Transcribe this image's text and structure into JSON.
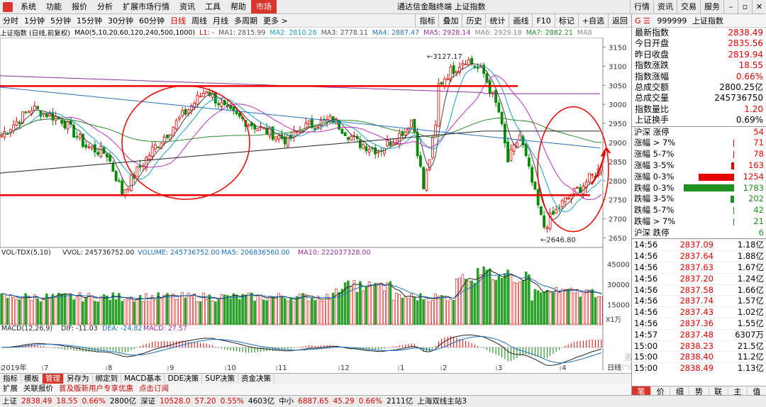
{
  "menubar": {
    "items": [
      "系统",
      "功能",
      "报价",
      "分析",
      "扩展市场行情",
      "资讯",
      "工具",
      "帮助"
    ],
    "active": "市场",
    "title": "通达信金融终端  上证指数",
    "right_buttons": [
      "行情",
      "资讯",
      "交易",
      "服务"
    ]
  },
  "periodbar": {
    "items": [
      "分时",
      "1分钟",
      "5分钟",
      "15分钟",
      "30分钟",
      "60分钟",
      "日线",
      "周线",
      "月线",
      "多周期",
      "更多 >"
    ],
    "active": "日线",
    "tools": [
      "指标",
      "叠加",
      "历史",
      "统计",
      "画线",
      "F10",
      "标记",
      "+自选",
      "返回"
    ]
  },
  "ma_legend": {
    "label": "上证指数 (日线,前复权)",
    "ma0": "MA0(5,10,20,60,120,240,500,1000)",
    "l1": "L1: -",
    "ma1": "MA1: 2815.99",
    "ma2": "MA2: 2810.26",
    "ma3": "MA3: 2778.11",
    "ma4": "MA4: 2887.47",
    "ma5": "MA5: 2928.14",
    "ma6": "MA6: 2929.18",
    "ma7": "MA7: 2882.21",
    "ma8": "MA8"
  },
  "volume_legend": {
    "label": "VOL-TDX(5,10)",
    "vvol": "VVOL: 245736752.00",
    "volume": "VOLUME: 245736752.00",
    "ma5": "MA5: 206836560.00",
    "ma10": "MA10: 222037328.00",
    "unit": "X1万"
  },
  "macd_legend": {
    "label": "MACD(12,26,9)",
    "dif": "DIF: -11.03",
    "dea": "DEA: -24.82",
    "macd": "MACD: 27.57"
  },
  "price_axis": [
    "3150",
    "3100",
    "3050",
    "3000",
    "2950",
    "2900",
    "2850",
    "2800",
    "2750",
    "2700",
    "2650"
  ],
  "volume_axis": [
    "45000",
    "30000",
    "15000"
  ],
  "annotations": {
    "high": "3127.17",
    "low": "2646.80"
  },
  "x_axis": {
    "labels": [
      "2019年",
      "7",
      "8",
      "9",
      "10",
      "11",
      "12",
      "1",
      "2",
      "3",
      "4"
    ],
    "period": "日线"
  },
  "right_panel": {
    "code": "999999",
    "name": "上证指数",
    "prefix": "G ☰",
    "quote": [
      {
        "label": "最新指数",
        "value": "2838.49"
      },
      {
        "label": "今日开盘",
        "value": "2835.56"
      },
      {
        "label": "昨日收盘",
        "value": "2819.94"
      },
      {
        "label": "指数涨跌",
        "value": "18.55"
      },
      {
        "label": "指数涨幅",
        "value": "0.66%"
      },
      {
        "label": "总成交额",
        "value": "2800.25亿"
      },
      {
        "label": "总成交量",
        "value": "245736750"
      },
      {
        "label": "指数量比",
        "value": "1.20"
      },
      {
        "label": "上证换手",
        "value": "0.69%"
      }
    ],
    "breadth": [
      {
        "label": "沪深 涨停",
        "value": "54",
        "frac": 0,
        "color": "#e60000"
      },
      {
        "label": "涨幅 > 7%",
        "value": "71",
        "frac": 0.02,
        "color": "#e60000"
      },
      {
        "label": "涨幅 5-7%",
        "value": "78",
        "frac": 0.02,
        "color": "#e60000"
      },
      {
        "label": "涨幅 3-5%",
        "value": "163",
        "frac": 0.05,
        "color": "#e60000"
      },
      {
        "label": "涨幅 0-3%",
        "value": "1254",
        "frac": 0.7,
        "color": "#e60000"
      },
      {
        "label": "跌幅 0-3%",
        "value": "1783",
        "frac": 1.0,
        "color": "#1f8f1f",
        "left": true
      },
      {
        "label": "跌幅 3-5%",
        "value": "202",
        "frac": 0.07,
        "color": "#1f8f1f"
      },
      {
        "label": "跌幅 5-7%",
        "value": "42",
        "frac": 0.01,
        "color": "#1f8f1f"
      },
      {
        "label": "跌幅 > 7%",
        "value": "21",
        "frac": 0.01,
        "color": "#1f8f1f"
      },
      {
        "label": "沪深 跌停",
        "value": "6",
        "frac": 0,
        "color": "#1f8f1f"
      }
    ],
    "ticks": [
      {
        "t": "14:56",
        "p": "2837.09",
        "v": "1.18亿"
      },
      {
        "t": "14:56",
        "p": "2837.64",
        "v": "1.88亿"
      },
      {
        "t": "14:56",
        "p": "2837.63",
        "v": "1.67亿"
      },
      {
        "t": "14:56",
        "p": "2837.20",
        "v": "1.24亿"
      },
      {
        "t": "14:56",
        "p": "2837.58",
        "p2": "",
        "v": "1.66亿"
      },
      {
        "t": "14:56",
        "p": "2837.74",
        "v": "1.57亿"
      },
      {
        "t": "14:56",
        "p": "2837.43",
        "v": "1.02亿"
      },
      {
        "t": "14:56",
        "p": "2837.36",
        "v": "1.55亿"
      },
      {
        "t": "14:57",
        "p": "2837.48",
        "v": "6307万"
      },
      {
        "t": "15:00",
        "p": "2838.23",
        "v": "21.5亿"
      },
      {
        "t": "15:00",
        "p": "2838.40",
        "v": "11.2亿"
      },
      {
        "t": "15:00",
        "p": "2838.49",
        "v": "1.13亿"
      }
    ],
    "tabs": [
      "笔",
      "价",
      "细",
      "势",
      "联",
      "主",
      "值"
    ],
    "active_tab": "笔"
  },
  "bottom_tabs": [
    "指标",
    "模板",
    "管理",
    "另存为",
    "绑定到",
    "MACD基本",
    "DDE决策",
    "SUP决策",
    "资金决策"
  ],
  "bottom_active": "管理",
  "bottom_tabs2": [
    "扩展",
    "关联报价",
    "普及版新用户专享优惠",
    "点击订阅"
  ],
  "statusbar": [
    {
      "t": "上证",
      "c": ""
    },
    {
      "t": "2838.49",
      "c": "red"
    },
    {
      "t": "18.55",
      "c": "red"
    },
    {
      "t": "0.66%",
      "c": "red"
    },
    {
      "t": "2800亿",
      "c": ""
    },
    {
      "t": "深证",
      "c": ""
    },
    {
      "t": "10528.0",
      "c": "red"
    },
    {
      "t": "57.20",
      "c": "red"
    },
    {
      "t": "0.55%",
      "c": "red"
    },
    {
      "t": "4603亿",
      "c": ""
    },
    {
      "t": "中小",
      "c": ""
    },
    {
      "t": "6887.65",
      "c": "red"
    },
    {
      "t": "45.29",
      "c": "red"
    },
    {
      "t": "0.66%",
      "c": "red"
    },
    {
      "t": "2111亿",
      "c": ""
    },
    {
      "t": "上海双线主站3",
      "c": ""
    }
  ],
  "watermark": "激活 Windows\n转到\"设置\"以激活 Windows。"
}
